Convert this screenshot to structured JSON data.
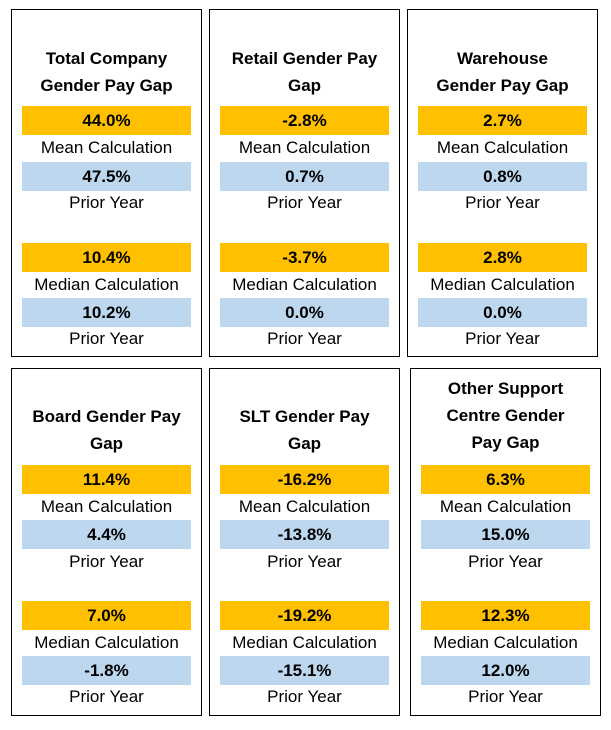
{
  "cards": [
    {
      "title": [
        "Total Company",
        "Gender Pay Gap"
      ],
      "mean": "44.0%",
      "mean_label": "Mean Calculation",
      "mean_prior": "47.5%",
      "mean_prior_label": "Prior Year",
      "median": "10.4%",
      "median_label": "Median Calculation",
      "median_prior": "10.2%",
      "median_prior_label": "Prior Year"
    },
    {
      "title": [
        "Retail Gender Pay",
        "Gap"
      ],
      "mean": "-2.8%",
      "mean_label": "Mean Calculation",
      "mean_prior": "0.7%",
      "mean_prior_label": "Prior Year",
      "median": "-3.7%",
      "median_label": "Median Calculation",
      "median_prior": "0.0%",
      "median_prior_label": "Prior Year"
    },
    {
      "title": [
        "Warehouse",
        "Gender Pay Gap"
      ],
      "mean": "2.7%",
      "mean_label": "Mean Calculation",
      "mean_prior": "0.8%",
      "mean_prior_label": "Prior Year",
      "median": "2.8%",
      "median_label": "Median Calculation",
      "median_prior": "0.0%",
      "median_prior_label": "Prior Year"
    },
    {
      "title": [
        "Board Gender Pay",
        "Gap"
      ],
      "mean": "11.4%",
      "mean_label": "Mean Calculation",
      "mean_prior": "4.4%",
      "mean_prior_label": "Prior Year",
      "median": "7.0%",
      "median_label": "Median Calculation",
      "median_prior": "-1.8%",
      "median_prior_label": "Prior Year"
    },
    {
      "title": [
        "SLT Gender Pay",
        "Gap"
      ],
      "mean": "-16.2%",
      "mean_label": "Mean Calculation",
      "mean_prior": "-13.8%",
      "mean_prior_label": "Prior Year",
      "median": "-19.2%",
      "median_label": "Median Calculation",
      "median_prior": "-15.1%",
      "median_prior_label": "Prior Year"
    },
    {
      "title": [
        "Other Support",
        "Centre Gender",
        "Pay Gap"
      ],
      "mean": "6.3%",
      "mean_label": "Mean Calculation",
      "mean_prior": "15.0%",
      "mean_prior_label": "Prior Year",
      "median": "12.3%",
      "median_label": "Median Calculation",
      "median_prior": "12.0%",
      "median_prior_label": "Prior Year"
    }
  ],
  "colors": {
    "current_fill": "#ffc000",
    "prior_fill": "#bdd7ee",
    "border": "#000000"
  }
}
